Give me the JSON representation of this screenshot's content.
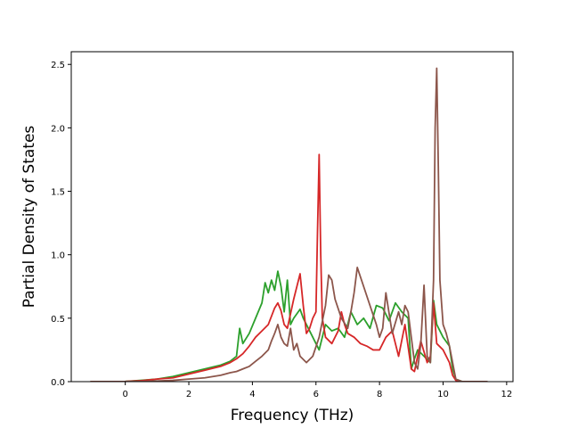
{
  "chart_data": {
    "type": "line",
    "title": "",
    "xlabel": "Frequency (THz)",
    "ylabel": "Partial Density of States",
    "xlim": [
      -1.7,
      12.2
    ],
    "ylim": [
      0.0,
      2.6
    ],
    "xticks": [
      0,
      2,
      4,
      6,
      8,
      10,
      12
    ],
    "yticks": [
      0.0,
      0.5,
      1.0,
      1.5,
      2.0,
      2.5
    ],
    "xtick_labels": [
      "0",
      "2",
      "4",
      "6",
      "8",
      "10",
      "12"
    ],
    "ytick_labels": [
      "0.0",
      "0.5",
      "1.0",
      "1.5",
      "2.0",
      "2.5"
    ],
    "grid": false,
    "legend": "none",
    "series": [
      {
        "color": "#2ca02c",
        "x": [
          -1.1,
          -0.5,
          0,
          0.5,
          1,
          1.5,
          2,
          2.5,
          3,
          3.3,
          3.5,
          3.6,
          3.7,
          3.9,
          4.1,
          4.3,
          4.4,
          4.5,
          4.6,
          4.7,
          4.8,
          4.9,
          5.0,
          5.1,
          5.2,
          5.3,
          5.5,
          5.6,
          5.8,
          6.0,
          6.1,
          6.3,
          6.5,
          6.7,
          6.9,
          7.1,
          7.3,
          7.5,
          7.7,
          7.9,
          8.1,
          8.3,
          8.5,
          8.7,
          8.9,
          9.0,
          9.1,
          9.2,
          9.4,
          9.6,
          9.7,
          9.8,
          9.9,
          10.0,
          10.2,
          10.3,
          10.4,
          10.6,
          11.4
        ],
        "y": [
          0,
          0,
          0.002,
          0.01,
          0.02,
          0.04,
          0.07,
          0.1,
          0.13,
          0.16,
          0.2,
          0.42,
          0.3,
          0.38,
          0.5,
          0.62,
          0.78,
          0.7,
          0.8,
          0.72,
          0.87,
          0.75,
          0.55,
          0.8,
          0.45,
          0.5,
          0.57,
          0.5,
          0.4,
          0.3,
          0.25,
          0.45,
          0.4,
          0.42,
          0.35,
          0.55,
          0.45,
          0.5,
          0.42,
          0.6,
          0.58,
          0.48,
          0.62,
          0.55,
          0.5,
          0.1,
          0.18,
          0.25,
          0.2,
          0.15,
          0.64,
          0.45,
          0.4,
          0.35,
          0.28,
          0.1,
          0.02,
          0,
          0
        ]
      },
      {
        "color": "#d62728",
        "x": [
          -1.1,
          -0.5,
          0,
          0.5,
          1,
          1.5,
          2,
          2.5,
          3,
          3.3,
          3.5,
          3.7,
          3.9,
          4.1,
          4.3,
          4.5,
          4.7,
          4.8,
          4.9,
          5.0,
          5.1,
          5.3,
          5.5,
          5.6,
          5.7,
          5.8,
          5.9,
          6.0,
          6.05,
          6.1,
          6.15,
          6.2,
          6.3,
          6.5,
          6.7,
          6.8,
          6.9,
          7.0,
          7.2,
          7.4,
          7.6,
          7.8,
          8.0,
          8.2,
          8.4,
          8.6,
          8.8,
          9.0,
          9.1,
          9.3,
          9.5,
          9.6,
          9.7,
          9.8,
          10.0,
          10.2,
          10.3,
          10.4,
          10.6,
          11.4
        ],
        "y": [
          0,
          0,
          0.002,
          0.008,
          0.02,
          0.03,
          0.06,
          0.09,
          0.12,
          0.15,
          0.18,
          0.22,
          0.28,
          0.35,
          0.4,
          0.45,
          0.58,
          0.62,
          0.56,
          0.45,
          0.42,
          0.65,
          0.85,
          0.6,
          0.38,
          0.42,
          0.5,
          0.55,
          1.2,
          1.79,
          1.0,
          0.5,
          0.35,
          0.3,
          0.4,
          0.55,
          0.45,
          0.38,
          0.35,
          0.3,
          0.28,
          0.25,
          0.25,
          0.35,
          0.4,
          0.2,
          0.45,
          0.1,
          0.08,
          0.32,
          0.15,
          0.2,
          0.62,
          0.3,
          0.25,
          0.15,
          0.05,
          0.01,
          0,
          0
        ]
      },
      {
        "color": "#8c564b",
        "x": [
          -1.1,
          -0.5,
          0,
          0.5,
          1,
          1.5,
          2,
          2.5,
          3,
          3.3,
          3.5,
          3.7,
          3.9,
          4.1,
          4.3,
          4.5,
          4.6,
          4.7,
          4.8,
          4.9,
          5.0,
          5.1,
          5.2,
          5.3,
          5.4,
          5.5,
          5.7,
          5.9,
          6.1,
          6.3,
          6.4,
          6.5,
          6.6,
          6.8,
          7.0,
          7.1,
          7.2,
          7.3,
          7.5,
          7.7,
          7.9,
          8.0,
          8.1,
          8.2,
          8.4,
          8.6,
          8.7,
          8.8,
          8.9,
          9.0,
          9.1,
          9.2,
          9.3,
          9.4,
          9.5,
          9.6,
          9.7,
          9.75,
          9.8,
          9.85,
          9.9,
          10.0,
          10.1,
          10.2,
          10.3,
          10.4,
          10.6,
          11.4
        ],
        "y": [
          0,
          0,
          0.001,
          0.002,
          0.005,
          0.01,
          0.02,
          0.03,
          0.05,
          0.07,
          0.08,
          0.1,
          0.12,
          0.16,
          0.2,
          0.25,
          0.32,
          0.38,
          0.45,
          0.35,
          0.3,
          0.28,
          0.42,
          0.25,
          0.3,
          0.2,
          0.15,
          0.2,
          0.35,
          0.6,
          0.84,
          0.8,
          0.65,
          0.5,
          0.42,
          0.55,
          0.7,
          0.9,
          0.75,
          0.6,
          0.45,
          0.35,
          0.42,
          0.7,
          0.38,
          0.55,
          0.45,
          0.6,
          0.55,
          0.35,
          0.15,
          0.1,
          0.3,
          0.76,
          0.2,
          0.15,
          0.8,
          2.0,
          2.47,
          1.7,
          0.8,
          0.45,
          0.38,
          0.28,
          0.15,
          0.02,
          0,
          0
        ]
      }
    ]
  }
}
